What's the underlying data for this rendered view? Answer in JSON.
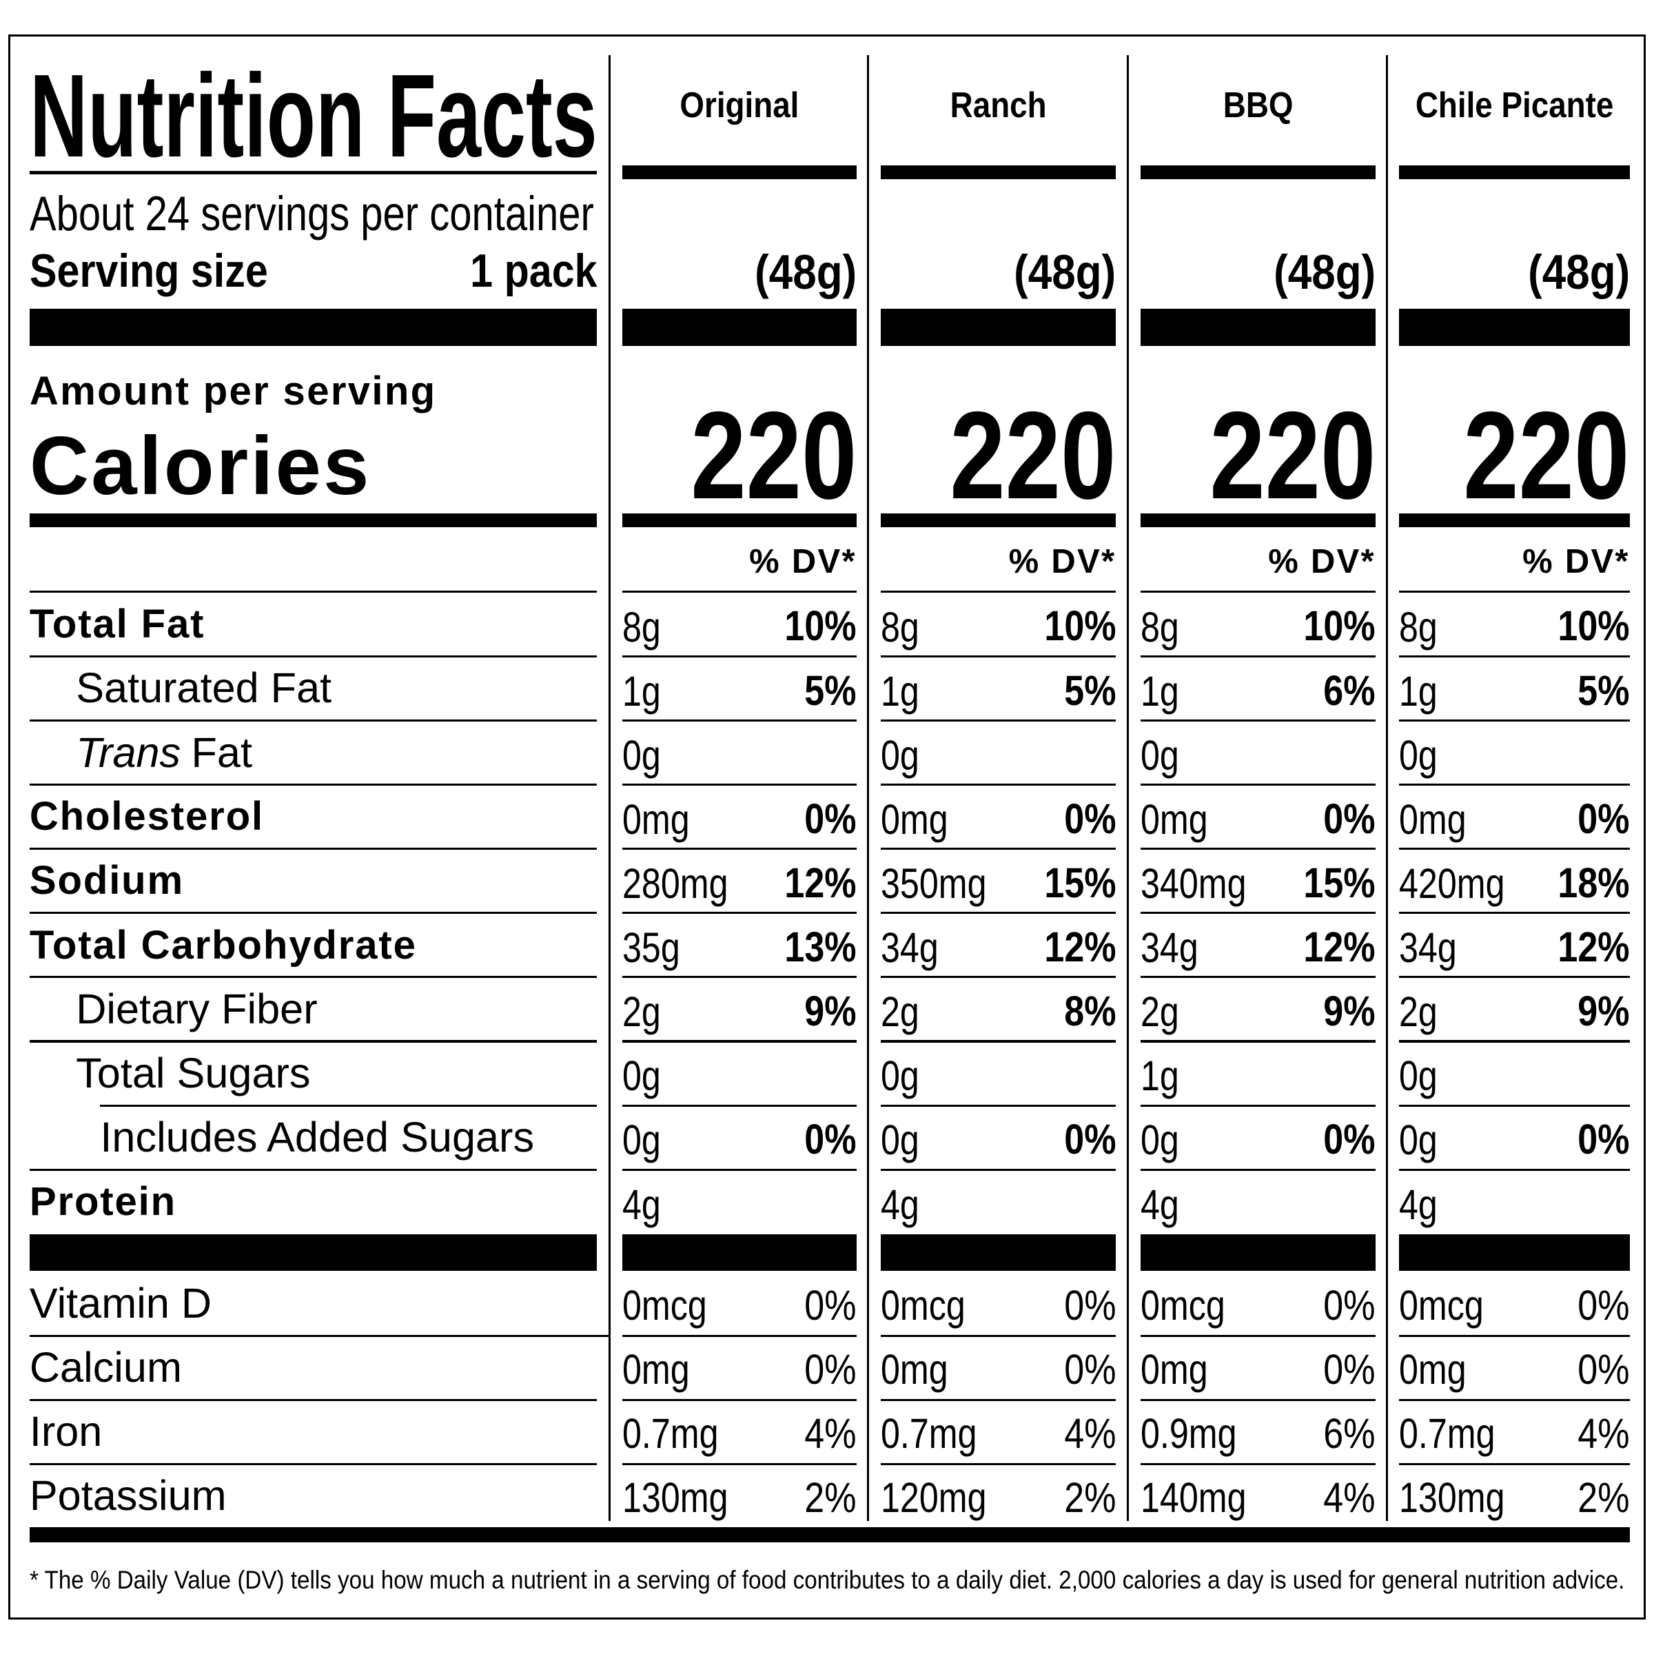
{
  "title": "Nutrition Facts",
  "servings": "About 24 servings per container",
  "serving_size_label": "Serving size",
  "serving_size": "1 pack",
  "amount_per_serving": "Amount per serving",
  "calories_label": "Calories",
  "dv_header": "% DV*",
  "columns": [
    {
      "name": "Original",
      "serving": "(48g)",
      "calories": 220
    },
    {
      "name": "Ranch",
      "serving": "(48g)",
      "calories": 220
    },
    {
      "name": "BBQ",
      "serving": "(48g)",
      "calories": 220
    },
    {
      "name": "Chile Picante",
      "serving": "(48g)",
      "calories": 220
    }
  ],
  "nutrients": [
    {
      "label": "Total Fat",
      "bold": true,
      "indent": 0,
      "amounts": [
        "8g",
        "8g",
        "8g",
        "8g"
      ],
      "dvs": [
        "10%",
        "10%",
        "10%",
        "10%"
      ]
    },
    {
      "label": "Saturated Fat",
      "bold": false,
      "indent": 1,
      "amounts": [
        "1g",
        "1g",
        "1g",
        "1g"
      ],
      "dvs": [
        "5%",
        "5%",
        "6%",
        "5%"
      ]
    },
    {
      "label_italic": "Trans",
      "label": "Fat",
      "bold": false,
      "indent": 1,
      "amounts": [
        "0g",
        "0g",
        "0g",
        "0g"
      ],
      "dvs": [
        null,
        null,
        null,
        null
      ]
    },
    {
      "label": "Cholesterol",
      "bold": true,
      "indent": 0,
      "amounts": [
        "0mg",
        "0mg",
        "0mg",
        "0mg"
      ],
      "dvs": [
        "0%",
        "0%",
        "0%",
        "0%"
      ]
    },
    {
      "label": "Sodium",
      "bold": true,
      "indent": 0,
      "amounts": [
        "280mg",
        "350mg",
        "340mg",
        "420mg"
      ],
      "dvs": [
        "12%",
        "15%",
        "15%",
        "18%"
      ]
    },
    {
      "label": "Total Carbohydrate",
      "bold": true,
      "indent": 0,
      "amounts": [
        "35g",
        "34g",
        "34g",
        "34g"
      ],
      "dvs": [
        "13%",
        "12%",
        "12%",
        "12%"
      ]
    },
    {
      "label": "Dietary Fiber",
      "bold": false,
      "indent": 1,
      "amounts": [
        "2g",
        "2g",
        "2g",
        "2g"
      ],
      "dvs": [
        "9%",
        "8%",
        "9%",
        "9%"
      ]
    },
    {
      "label": "Total Sugars",
      "bold": false,
      "indent": 1,
      "amounts": [
        "0g",
        "0g",
        "1g",
        "0g"
      ],
      "dvs": [
        null,
        null,
        null,
        null
      ]
    },
    {
      "label": "Includes Added Sugars",
      "bold": false,
      "indent": 2,
      "amounts": [
        "0g",
        "0g",
        "0g",
        "0g"
      ],
      "dvs": [
        "0%",
        "0%",
        "0%",
        "0%"
      ]
    },
    {
      "label": "Protein",
      "bold": true,
      "indent": 0,
      "amounts": [
        "4g",
        "4g",
        "4g",
        "4g"
      ],
      "dvs": [
        null,
        null,
        null,
        null
      ]
    }
  ],
  "vitamins": [
    {
      "label": "Vitamin D",
      "amounts": [
        "0mcg",
        "0mcg",
        "0mcg",
        "0mcg"
      ],
      "dvs": [
        "0%",
        "0%",
        "0%",
        "0%"
      ]
    },
    {
      "label": "Calcium",
      "amounts": [
        "0mg",
        "0mg",
        "0mg",
        "0mg"
      ],
      "dvs": [
        "0%",
        "0%",
        "0%",
        "0%"
      ]
    },
    {
      "label": "Iron",
      "amounts": [
        "0.7mg",
        "0.7mg",
        "0.9mg",
        "0.7mg"
      ],
      "dvs": [
        "4%",
        "4%",
        "6%",
        "4%"
      ]
    },
    {
      "label": "Potassium",
      "amounts": [
        "130mg",
        "120mg",
        "140mg",
        "130mg"
      ],
      "dvs": [
        "2%",
        "2%",
        "4%",
        "2%"
      ]
    }
  ],
  "footnote": "* The % Daily Value (DV) tells you how much a nutrient in a serving of food contributes to a daily diet. 2,000 calories a day is used for general nutrition advice."
}
